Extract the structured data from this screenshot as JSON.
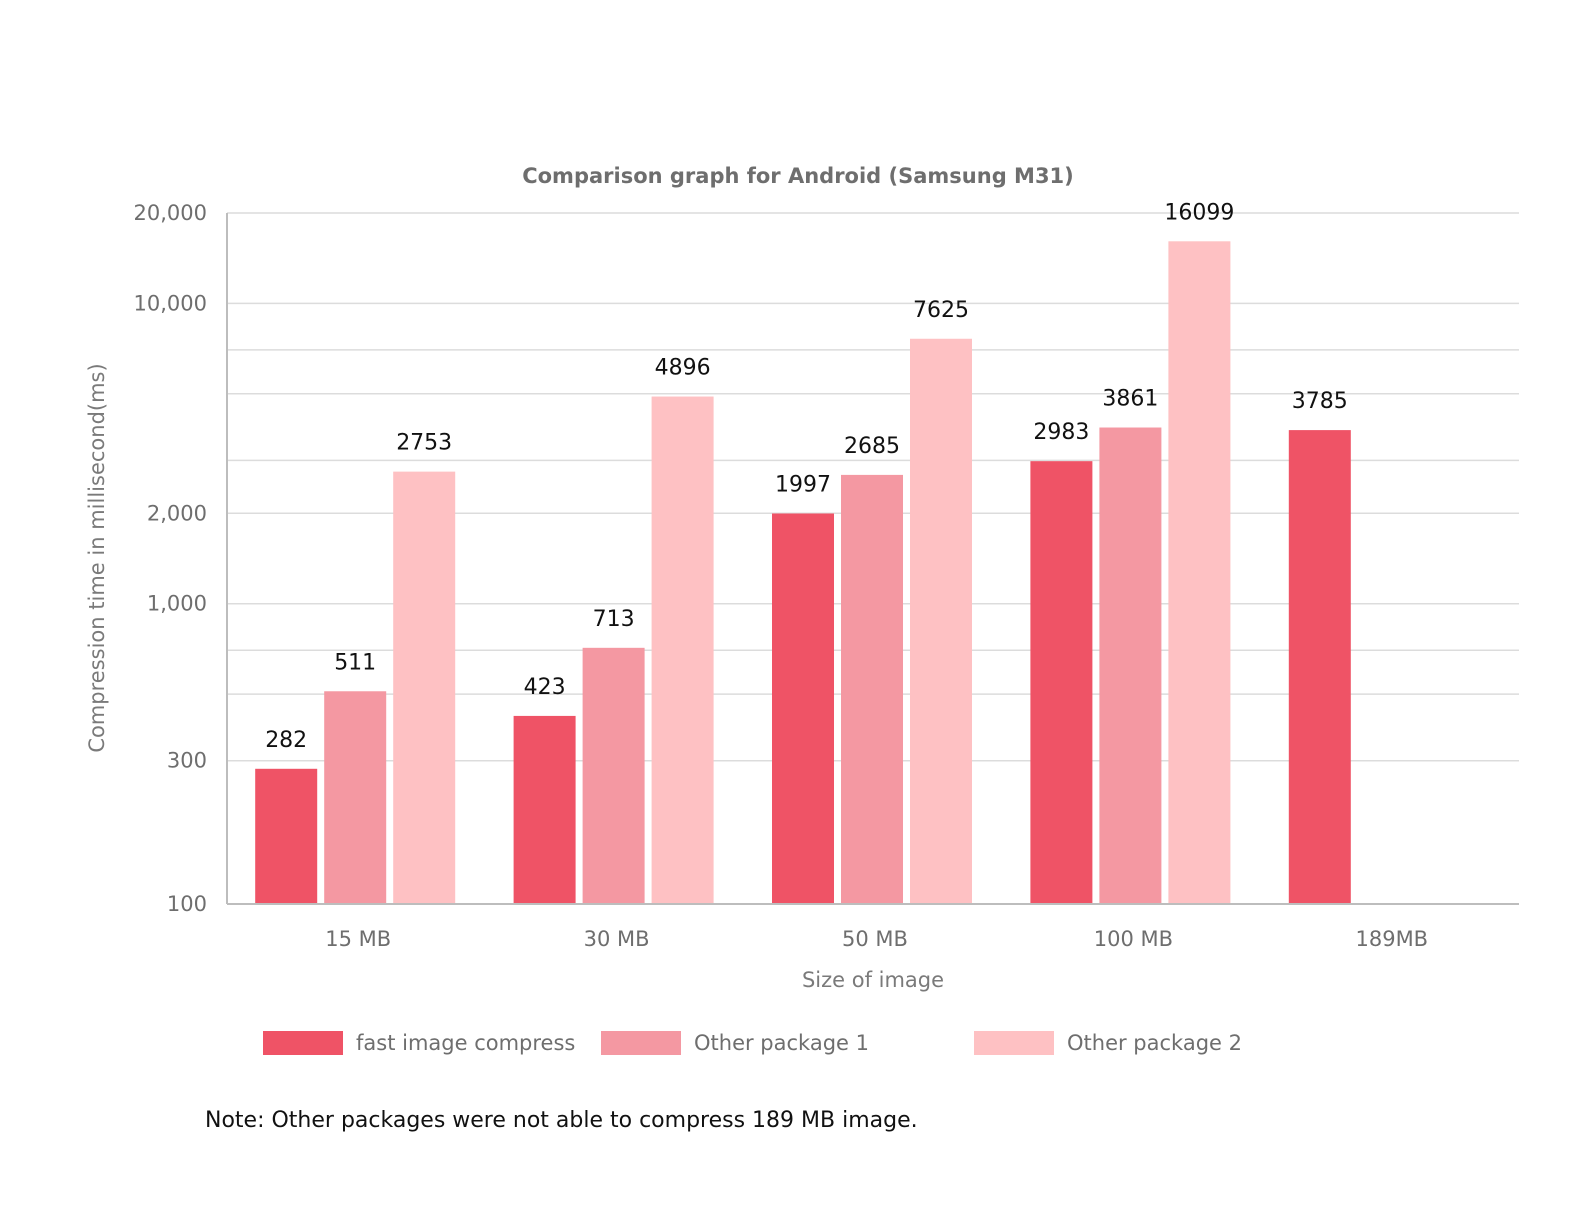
{
  "chart_data": {
    "type": "bar",
    "title": "Comparison graph for Android (Samsung M31)",
    "xlabel": "Size of image",
    "ylabel": "Compression time in millisecond(ms)",
    "y_scale": "log",
    "ylim": [
      100,
      20000
    ],
    "y_ticks": [
      {
        "value": 100,
        "label": "100"
      },
      {
        "value": 300,
        "label": "300"
      },
      {
        "value": 1000,
        "label": "1,000"
      },
      {
        "value": 2000,
        "label": "2,000"
      },
      {
        "value": 10000,
        "label": "10,000"
      },
      {
        "value": 20000,
        "label": "20,000"
      }
    ],
    "minor_gridlines": [
      500,
      700,
      3000,
      5000,
      7000
    ],
    "categories": [
      "15 MB",
      "30 MB",
      "50 MB",
      "100 MB",
      "189MB"
    ],
    "series": [
      {
        "name": "fast image compress",
        "color": "#ef5366",
        "values": [
          282,
          423,
          1997,
          2983,
          3785
        ]
      },
      {
        "name": "Other package 1",
        "color": "#f498a2",
        "values": [
          511,
          713,
          2685,
          3861,
          null
        ]
      },
      {
        "name": "Other package 2",
        "color": "#fec1c3",
        "values": [
          2753,
          4896,
          7625,
          16099,
          null
        ]
      }
    ],
    "legend_position": "bottom",
    "grid": true,
    "note": "Note: Other packages were not able to compress 189 MB image."
  }
}
